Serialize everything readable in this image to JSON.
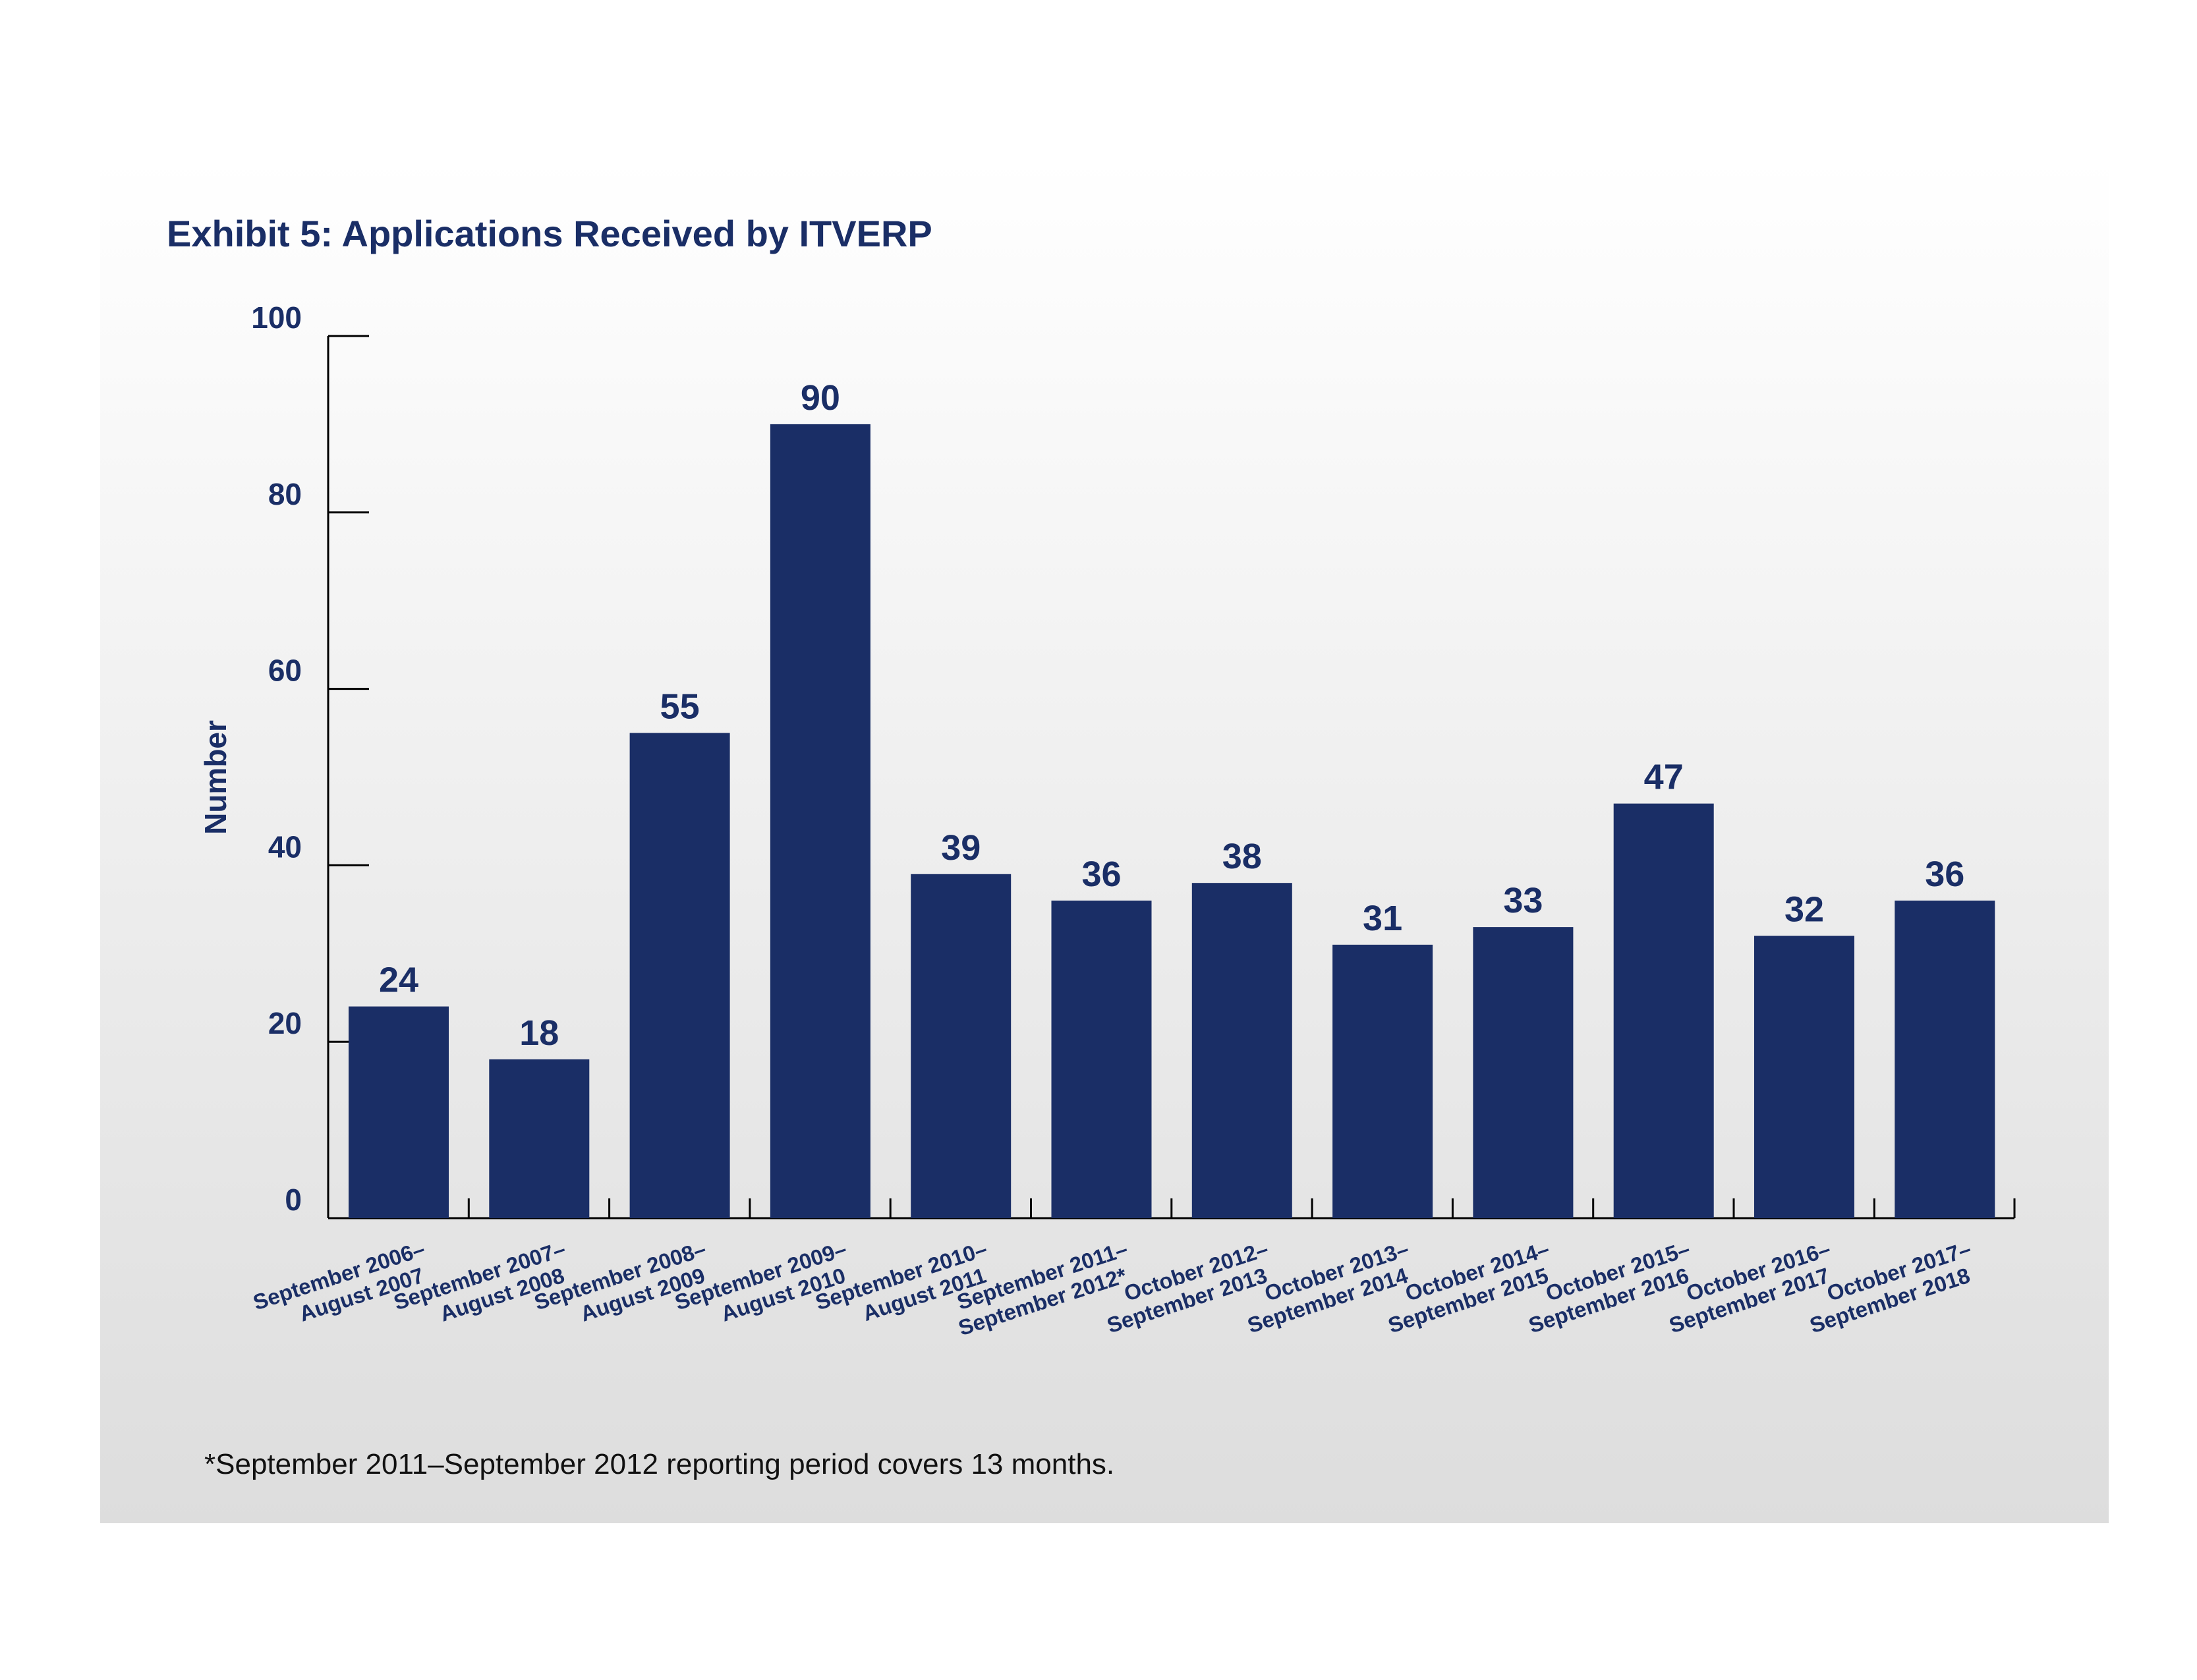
{
  "chart_data": {
    "type": "bar",
    "title": "Exhibit 5: Applications Received by ITVERP",
    "xlabel": "",
    "ylabel": "Number",
    "ylim": [
      0,
      100
    ],
    "yticks": [
      "0",
      "20",
      "40",
      "60",
      "80",
      "100"
    ],
    "categories": [
      [
        "September 2006–",
        "August 2007"
      ],
      [
        "September 2007–",
        "August 2008"
      ],
      [
        "September 2008–",
        "August 2009"
      ],
      [
        "September 2009–",
        "August 2010"
      ],
      [
        "September 2010–",
        "August 2011"
      ],
      [
        "September 2011–",
        "September 2012*"
      ],
      [
        "October 2012–",
        "September 2013"
      ],
      [
        "October 2013–",
        "September 2014"
      ],
      [
        "October 2014–",
        "September 2015"
      ],
      [
        "October 2015–",
        "September 2016"
      ],
      [
        "October 2016–",
        "September 2017"
      ],
      [
        "October 2017–",
        "September 2018"
      ]
    ],
    "values": [
      24,
      18,
      55,
      90,
      39,
      36,
      38,
      31,
      33,
      47,
      32,
      36
    ],
    "footnote": "*September 2011–September 2012 reporting period covers 13 months.",
    "grid": false,
    "bar_color": "#1a2e66",
    "text_color": "#1a2e66"
  }
}
